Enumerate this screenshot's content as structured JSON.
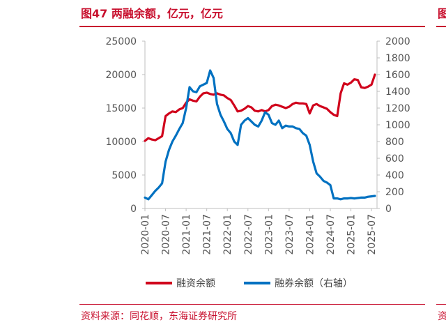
{
  "figure": {
    "title": "图47  两融余额，亿元，亿元",
    "source": "资料来源：同花顺，东海证券研究所",
    "right_edge_title_fragment": "图",
    "right_edge_source_fragment": "资"
  },
  "colors": {
    "accent": "#c8102e",
    "margin_series": "#d0021b",
    "short_series": "#0071c1"
  },
  "chart_data": {
    "type": "line",
    "x_tick_labels": [
      "2020-01",
      "2020-07",
      "2021-01",
      "2021-07",
      "2022-01",
      "2022-07",
      "2023-01",
      "2023-07",
      "2024-01",
      "2024-07",
      "2025-01",
      "2025-07"
    ],
    "y_left": {
      "ticks": [
        "0",
        "5000",
        "10000",
        "15000",
        "20000",
        "25000"
      ],
      "range": [
        0,
        25000
      ]
    },
    "y_right": {
      "ticks": [
        "0",
        "200",
        "400",
        "600",
        "800",
        "1000",
        "1200",
        "1400",
        "1600",
        "1800",
        "2000"
      ],
      "range": [
        0,
        2000
      ]
    },
    "grid": false,
    "legend_position": "bottom",
    "series": [
      {
        "name": "融资余额",
        "axis": "left",
        "x": [
          "2020-01",
          "2020-02",
          "2020-03",
          "2020-04",
          "2020-05",
          "2020-06",
          "2020-07",
          "2020-08",
          "2020-09",
          "2020-10",
          "2020-11",
          "2020-12",
          "2021-01",
          "2021-02",
          "2021-03",
          "2021-04",
          "2021-05",
          "2021-06",
          "2021-07",
          "2021-08",
          "2021-09",
          "2021-10",
          "2021-11",
          "2021-12",
          "2022-01",
          "2022-02",
          "2022-03",
          "2022-04",
          "2022-05",
          "2022-06",
          "2022-07",
          "2022-08",
          "2022-09",
          "2022-10",
          "2022-11",
          "2022-12",
          "2023-01",
          "2023-02",
          "2023-03",
          "2023-04",
          "2023-05",
          "2023-06",
          "2023-07",
          "2023-08",
          "2023-09",
          "2023-10",
          "2023-11",
          "2023-12",
          "2024-01",
          "2024-02",
          "2024-03",
          "2024-04",
          "2024-05",
          "2024-06",
          "2024-07",
          "2024-08",
          "2024-09",
          "2024-10",
          "2024-11",
          "2024-12",
          "2025-01",
          "2025-02",
          "2025-03",
          "2025-04",
          "2025-05",
          "2025-06",
          "2025-07",
          "2025-08"
        ],
        "values": [
          10100,
          10500,
          10300,
          10200,
          10500,
          10800,
          13800,
          14200,
          14500,
          14400,
          14800,
          15000,
          15800,
          16300,
          16100,
          16000,
          16700,
          17200,
          17300,
          17100,
          17000,
          17200,
          17000,
          16900,
          16500,
          16200,
          15400,
          14500,
          14600,
          14900,
          15300,
          15100,
          14600,
          14500,
          14700,
          14500,
          14700,
          15300,
          15500,
          15400,
          15200,
          15000,
          15200,
          15600,
          15800,
          15700,
          15700,
          15600,
          14200,
          15400,
          15600,
          15300,
          15100,
          14900,
          14400,
          14000,
          13800,
          17200,
          18700,
          18500,
          18800,
          19300,
          19200,
          18100,
          18000,
          18200,
          18500,
          20000
        ]
      },
      {
        "name": "融券余额（右轴）",
        "axis": "right",
        "x": [
          "2020-01",
          "2020-02",
          "2020-03",
          "2020-04",
          "2020-05",
          "2020-06",
          "2020-07",
          "2020-08",
          "2020-09",
          "2020-10",
          "2020-11",
          "2020-12",
          "2021-01",
          "2021-02",
          "2021-03",
          "2021-04",
          "2021-05",
          "2021-06",
          "2021-07",
          "2021-08",
          "2021-09",
          "2021-10",
          "2021-11",
          "2021-12",
          "2022-01",
          "2022-02",
          "2022-03",
          "2022-04",
          "2022-05",
          "2022-06",
          "2022-07",
          "2022-08",
          "2022-09",
          "2022-10",
          "2022-11",
          "2022-12",
          "2023-01",
          "2023-02",
          "2023-03",
          "2023-04",
          "2023-05",
          "2023-06",
          "2023-07",
          "2023-08",
          "2023-09",
          "2023-10",
          "2023-11",
          "2023-12",
          "2024-01",
          "2024-02",
          "2024-03",
          "2024-04",
          "2024-05",
          "2024-06",
          "2024-07",
          "2024-08",
          "2024-09",
          "2024-10",
          "2024-11",
          "2024-12",
          "2025-01",
          "2025-02",
          "2025-03",
          "2025-04",
          "2025-05",
          "2025-06",
          "2025-07",
          "2025-08"
        ],
        "values": [
          130,
          110,
          160,
          210,
          250,
          300,
          560,
          700,
          800,
          870,
          950,
          1020,
          1200,
          1450,
          1400,
          1390,
          1460,
          1480,
          1500,
          1650,
          1560,
          1250,
          1120,
          1040,
          950,
          900,
          800,
          760,
          1000,
          1050,
          1080,
          1040,
          1000,
          980,
          1050,
          1150,
          1120,
          1020,
          1000,
          1050,
          960,
          990,
          980,
          980,
          960,
          950,
          900,
          870,
          760,
          560,
          420,
          380,
          330,
          310,
          280,
          120,
          120,
          110,
          120,
          120,
          125,
          120,
          125,
          130,
          130,
          140,
          145,
          150
        ]
      }
    ]
  }
}
